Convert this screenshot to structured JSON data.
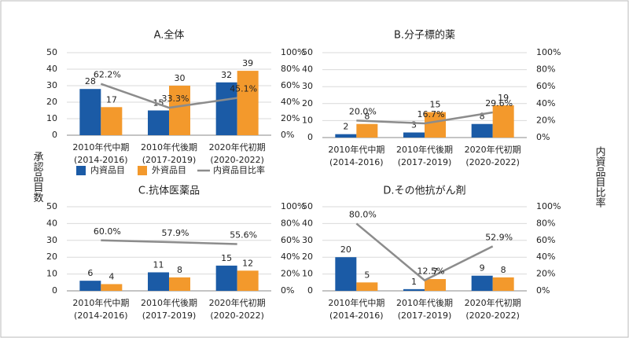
{
  "y_label": "承認品目数",
  "y2_label": "内資品目比率",
  "chart_data": [
    {
      "type": "bar",
      "title": "A.全体",
      "categories": [
        "2010年代中期\n(2014-2016)",
        "2010年代後期\n(2017-2019)",
        "2020年代初期\n(2020-2022)"
      ],
      "series": [
        {
          "name": "内資品目",
          "color": "#1b5ba6",
          "values": [
            28,
            15,
            32
          ]
        },
        {
          "name": "外資品目",
          "color": "#f3992c",
          "values": [
            17,
            30,
            39
          ]
        },
        {
          "name": "内資品目比率",
          "color": "#8c8c8c",
          "axis": "y2",
          "values": [
            62.2,
            33.3,
            45.1
          ],
          "value_labels": [
            "62.2%",
            "33.3%",
            "45.1%"
          ]
        }
      ],
      "ylim": [
        0,
        50
      ],
      "yticks": [
        0,
        10,
        20,
        30,
        40,
        50
      ],
      "y2lim": [
        0,
        100
      ],
      "y2ticks": [
        {
          "value": 0,
          "label": "0%"
        },
        {
          "value": 20,
          "label": "20%"
        },
        {
          "value": 40,
          "label": "40%"
        },
        {
          "value": 60,
          "label": "60%"
        },
        {
          "value": 80,
          "label": "80%"
        },
        {
          "value": 100,
          "label": "100%"
        }
      ],
      "grid": true,
      "legend": "bottom"
    },
    {
      "type": "bar",
      "title": "B.分子標的薬",
      "categories": [
        "2010年代中期\n(2014-2016)",
        "2010年代後期\n(2017-2019)",
        "2020年代初期\n(2020-2022)"
      ],
      "series": [
        {
          "color": "#1b5ba6",
          "values": [
            2,
            3,
            8
          ]
        },
        {
          "color": "#f3992c",
          "values": [
            8,
            15,
            19
          ]
        },
        {
          "color": "#8c8c8c",
          "axis": "y2",
          "values": [
            20.0,
            16.7,
            29.6
          ],
          "value_labels": [
            "20.0%",
            "16.7%",
            "29.6%"
          ]
        }
      ],
      "ylim": [
        0,
        50
      ],
      "yticks": [
        0,
        10,
        20,
        30,
        40,
        50
      ],
      "y2lim": [
        0,
        100
      ],
      "y2ticks": [
        {
          "value": 0,
          "label": "0%"
        },
        {
          "value": 20,
          "label": "20%"
        },
        {
          "value": 40,
          "label": "40%"
        },
        {
          "value": 60,
          "label": "60%"
        },
        {
          "value": 80,
          "label": "80%"
        },
        {
          "value": 100,
          "label": "100%"
        }
      ],
      "grid": true
    },
    {
      "type": "bar",
      "title": "C.抗体医薬品",
      "categories": [
        "2010年代中期\n(2014-2016)",
        "2010年代後期\n(2017-2019)",
        "2020年代初期\n(2020-2022)"
      ],
      "series": [
        {
          "color": "#1b5ba6",
          "values": [
            6,
            11,
            15
          ]
        },
        {
          "color": "#f3992c",
          "values": [
            4,
            8,
            12
          ]
        },
        {
          "color": "#8c8c8c",
          "axis": "y2",
          "values": [
            60.0,
            57.9,
            55.6
          ],
          "value_labels": [
            "60.0%",
            "57.9%",
            "55.6%"
          ]
        }
      ],
      "ylim": [
        0,
        50
      ],
      "yticks": [
        0,
        10,
        20,
        30,
        40,
        50
      ],
      "y2lim": [
        0,
        100
      ],
      "y2ticks": [
        {
          "value": 0,
          "label": "0%"
        },
        {
          "value": 20,
          "label": "20%"
        },
        {
          "value": 40,
          "label": "40%"
        },
        {
          "value": 60,
          "label": "60%"
        },
        {
          "value": 80,
          "label": "80%"
        },
        {
          "value": 100,
          "label": "100%"
        }
      ],
      "grid": true
    },
    {
      "type": "bar",
      "title": "D.その他抗がん剤",
      "categories": [
        "2010年代中期\n(2014-2016)",
        "2010年代後期\n(2017-2019)",
        "2020年代初期\n(2020-2022)"
      ],
      "series": [
        {
          "color": "#1b5ba6",
          "values": [
            20,
            1,
            9
          ]
        },
        {
          "color": "#f3992c",
          "values": [
            5,
            7,
            8
          ]
        },
        {
          "color": "#8c8c8c",
          "axis": "y2",
          "values": [
            80.0,
            12.5,
            52.9
          ],
          "value_labels": [
            "80.0%",
            "12.5%",
            "52.9%"
          ]
        }
      ],
      "ylim": [
        0,
        50
      ],
      "yticks": [
        0,
        10,
        20,
        30,
        40,
        50
      ],
      "y2lim": [
        0,
        100
      ],
      "y2ticks": [
        {
          "value": 0,
          "label": "0%"
        },
        {
          "value": 20,
          "label": "20%"
        },
        {
          "value": 40,
          "label": "40%"
        },
        {
          "value": 60,
          "label": "60%"
        },
        {
          "value": 80,
          "label": "80%"
        },
        {
          "value": 100,
          "label": "100%"
        }
      ],
      "grid": true
    }
  ]
}
